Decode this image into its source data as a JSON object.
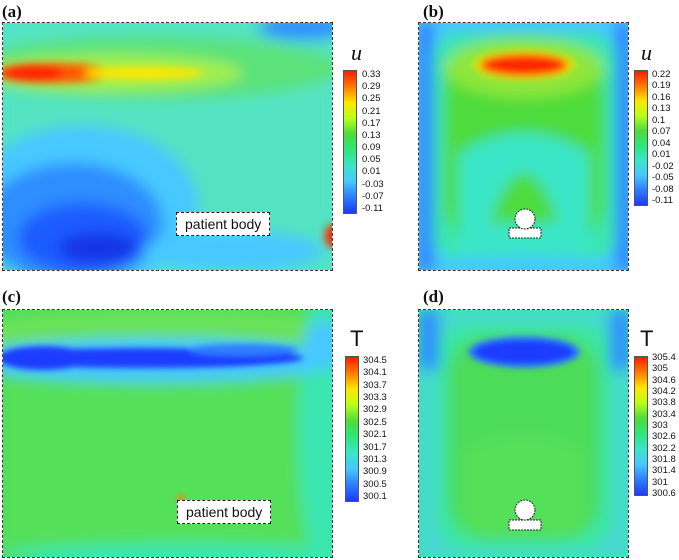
{
  "panels": {
    "a": {
      "label": "(a)",
      "variable": "u",
      "ticks": [
        "0.33",
        "0.29",
        "0.25",
        "0.21",
        "0.17",
        "0.13",
        "0.09",
        "0.05",
        "0.01",
        "-0.03",
        "-0.07",
        "-0.11"
      ],
      "tag": "patient body"
    },
    "b": {
      "label": "(b)",
      "variable": "u",
      "ticks": [
        "0.22",
        "0.19",
        "0.16",
        "0.13",
        "0.1",
        "0.07",
        "0.04",
        "0.01",
        "-0.02",
        "-0.05",
        "-0.08",
        "-0.11"
      ]
    },
    "c": {
      "label": "(c)",
      "variable": "T",
      "ticks": [
        "304.5",
        "304.1",
        "303.7",
        "303.3",
        "302.9",
        "302.5",
        "302.1",
        "301.7",
        "301.3",
        "300.9",
        "300.5",
        "300.1"
      ],
      "tag": "patient body"
    },
    "d": {
      "label": "(d)",
      "variable": "T",
      "ticks": [
        "305.4",
        "305",
        "304.6",
        "304.2",
        "303.8",
        "303.4",
        "303",
        "302.6",
        "302.2",
        "301.8",
        "301.4",
        "301",
        "300.6"
      ]
    }
  },
  "colors": {
    "colormap": [
      "#ff1a00",
      "#ff7a00",
      "#ffe600",
      "#b8ff1a",
      "#4ddc3a",
      "#2ee67a",
      "#3ae6c8",
      "#46c8ff",
      "#2d7dff",
      "#1a3cff"
    ]
  }
}
